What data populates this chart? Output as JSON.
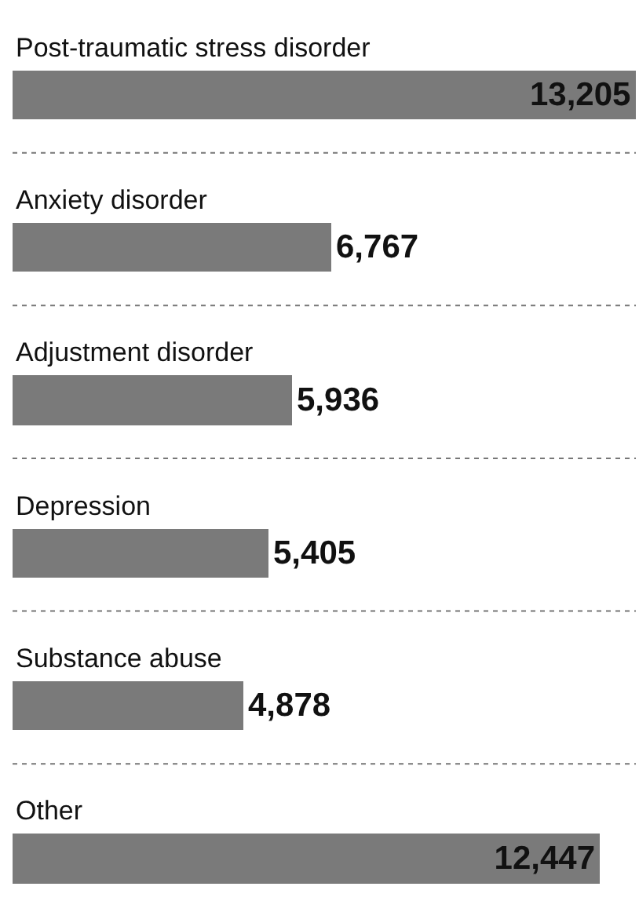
{
  "chart_data": {
    "type": "bar",
    "orientation": "horizontal",
    "categories": [
      "Post-traumatic stress disorder",
      "Anxiety disorder",
      "Adjustment disorder",
      "Depression",
      "Substance abuse",
      "Other"
    ],
    "values": [
      13205,
      6767,
      5936,
      5405,
      4878,
      12447
    ],
    "value_labels": [
      "13,205",
      "6,767",
      "5,936",
      "5,405",
      "4,878",
      "12,447"
    ],
    "color": "#7a7a7a",
    "legend": false
  }
}
